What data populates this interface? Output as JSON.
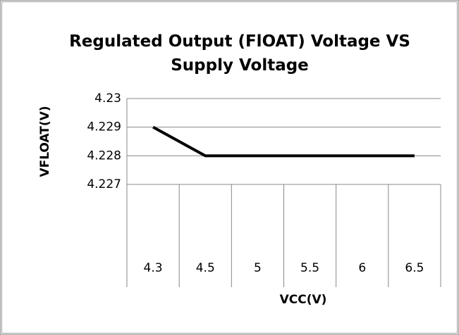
{
  "chart_data": {
    "type": "line",
    "title": "Regulated Output (FlOAT) Voltage VS Supply Voltage",
    "x_label": "VCC(V)",
    "y_label": "VFLOAT(V)",
    "categories": [
      "4.3",
      "4.5",
      "5",
      "5.5",
      "6",
      "6.5"
    ],
    "series": [
      {
        "name": "VFLOAT",
        "color": "#000000",
        "values": [
          4.229,
          4.228,
          4.228,
          4.228,
          4.228,
          4.228
        ]
      }
    ],
    "ylim": [
      4.227,
      4.23
    ],
    "yticks": [
      4.227,
      4.228,
      4.229,
      4.23
    ],
    "grid": true
  }
}
